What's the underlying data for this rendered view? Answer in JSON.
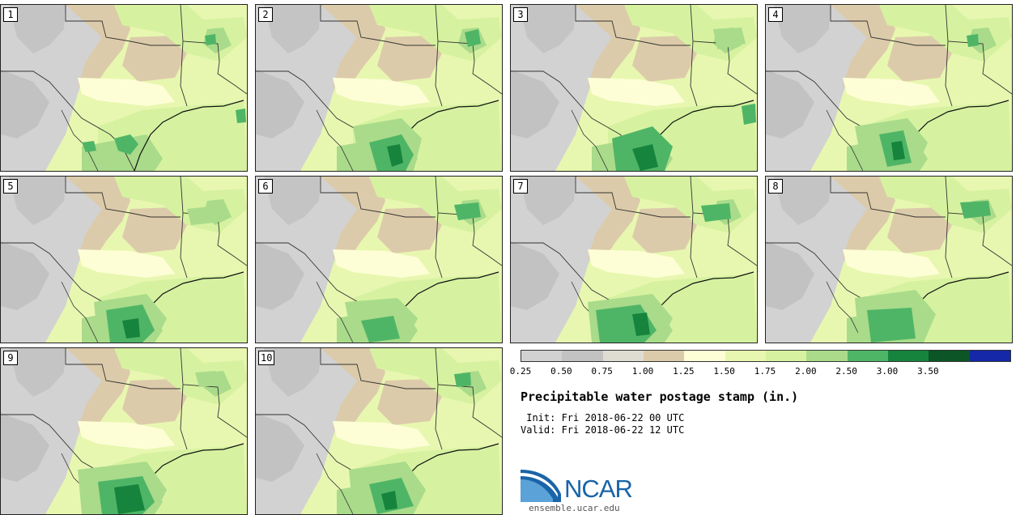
{
  "product": {
    "title": "Precipitable water postage stamp (in.)",
    "init": " Init: Fri 2018-06-22 00 UTC",
    "valid": "Valid: Fri 2018-06-22 12 UTC"
  },
  "members": [
    "1",
    "2",
    "3",
    "4",
    "5",
    "6",
    "7",
    "8",
    "9",
    "10"
  ],
  "colorbar": {
    "ticks": [
      "0.25",
      "0.50",
      "0.75",
      "1.00",
      "1.25",
      "1.50",
      "1.75",
      "2.00",
      "2.50",
      "3.00",
      "3.50"
    ],
    "colors": [
      "#d2d2d2",
      "#c2c2c2",
      "#dfdcd2",
      "#dccbaa",
      "#fdfed6",
      "#e8f7b0",
      "#d6f2a0",
      "#a9db8a",
      "#4fb566",
      "#16843c",
      "#0b5527",
      "#1428a8"
    ]
  },
  "branding": {
    "logo_text": "NCAR",
    "site": "ensemble.ucar.edu"
  }
}
